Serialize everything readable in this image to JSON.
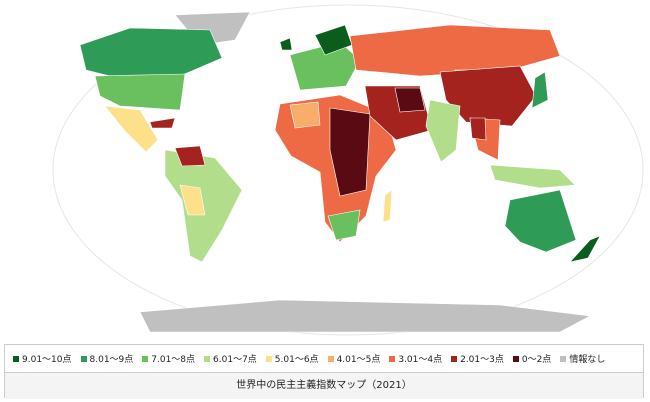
{
  "legend": {
    "items": [
      {
        "label": "9.01～10点",
        "color": "#0b5d1e"
      },
      {
        "label": "8.01～9点",
        "color": "#2e9b57"
      },
      {
        "label": "7.01～8点",
        "color": "#6abf5e"
      },
      {
        "label": "6.01～7点",
        "color": "#b2dd8a"
      },
      {
        "label": "5.01～6点",
        "color": "#fde08a"
      },
      {
        "label": "4.01～5点",
        "color": "#f8ad6a"
      },
      {
        "label": "3.01～4点",
        "color": "#ee6a45"
      },
      {
        "label": "2.01～3点",
        "color": "#a5231f"
      },
      {
        "label": "0～2点",
        "color": "#5a0a12"
      },
      {
        "label": "情報なし",
        "color": "#c0c0c0"
      }
    ]
  },
  "caption": "世界中の民主主義指数マップ（2021）"
}
